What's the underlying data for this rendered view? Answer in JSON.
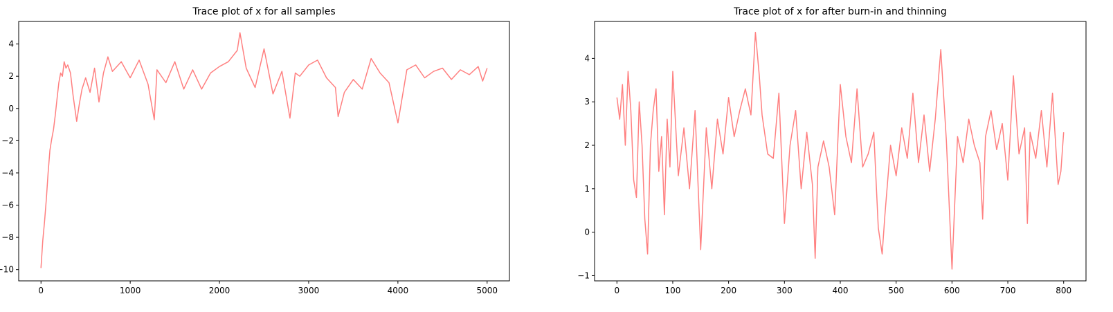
{
  "chart_data": [
    {
      "type": "line",
      "title": "Trace plot of x for all samples",
      "xlabel": "",
      "ylabel": "",
      "xlim": [
        -250,
        5250
      ],
      "ylim": [
        -10.7,
        5.4
      ],
      "xticks": [
        0,
        1000,
        2000,
        3000,
        4000,
        5000
      ],
      "xtick_labels": [
        "0",
        "1000",
        "2000",
        "3000",
        "4000",
        "5000"
      ],
      "yticks": [
        -10,
        -8,
        -6,
        -4,
        -2,
        0,
        2,
        4
      ],
      "ytick_labels": [
        "−10",
        "−8",
        "−6",
        "−4",
        "−2",
        "0",
        "2",
        "4"
      ],
      "grid": false,
      "series": [
        {
          "color": "#ff8080",
          "x": [
            0,
            20,
            40,
            60,
            80,
            100,
            120,
            140,
            160,
            180,
            200,
            220,
            240,
            260,
            280,
            300,
            330,
            360,
            400,
            430,
            460,
            500,
            550,
            600,
            650,
            700,
            750,
            800,
            900,
            1000,
            1100,
            1200,
            1270,
            1300,
            1400,
            1500,
            1600,
            1700,
            1800,
            1900,
            2000,
            2100,
            2200,
            2230,
            2300,
            2400,
            2500,
            2600,
            2700,
            2790,
            2850,
            2900,
            3000,
            3100,
            3200,
            3300,
            3330,
            3400,
            3500,
            3600,
            3700,
            3800,
            3900,
            4000,
            4100,
            4200,
            4300,
            4400,
            4500,
            4600,
            4700,
            4800,
            4900,
            4950,
            5000
          ],
          "y": [
            -9.9,
            -8.2,
            -7.0,
            -5.6,
            -4.0,
            -2.6,
            -1.9,
            -1.3,
            -0.4,
            0.6,
            1.6,
            2.2,
            2.0,
            2.9,
            2.5,
            2.7,
            2.2,
            0.8,
            -0.8,
            0.3,
            1.2,
            1.9,
            1.0,
            2.5,
            0.4,
            2.2,
            3.2,
            2.3,
            2.9,
            1.9,
            3.0,
            1.5,
            -0.7,
            2.4,
            1.6,
            2.9,
            1.2,
            2.4,
            1.2,
            2.2,
            2.6,
            2.9,
            3.6,
            4.7,
            2.5,
            1.3,
            3.7,
            0.9,
            2.3,
            -0.6,
            2.2,
            2.0,
            2.7,
            3.0,
            1.9,
            1.3,
            -0.5,
            1.0,
            1.8,
            1.2,
            3.1,
            2.2,
            1.6,
            -0.9,
            2.4,
            2.7,
            1.9,
            2.3,
            2.5,
            1.8,
            2.4,
            2.1,
            2.6,
            1.7,
            2.5
          ]
        }
      ]
    },
    {
      "type": "line",
      "title": "Trace plot of x for after burn-in and thinning",
      "xlabel": "",
      "ylabel": "",
      "xlim": [
        -40,
        840
      ],
      "ylim": [
        -1.12,
        4.85
      ],
      "xticks": [
        0,
        100,
        200,
        300,
        400,
        500,
        600,
        700,
        800
      ],
      "xtick_labels": [
        "0",
        "100",
        "200",
        "300",
        "400",
        "500",
        "600",
        "700",
        "800"
      ],
      "yticks": [
        -1,
        0,
        1,
        2,
        3,
        4
      ],
      "ytick_labels": [
        "−1",
        "0",
        "1",
        "2",
        "3",
        "4"
      ],
      "grid": false,
      "series": [
        {
          "color": "#ff8080",
          "x": [
            0,
            5,
            10,
            15,
            20,
            25,
            30,
            35,
            40,
            45,
            50,
            55,
            60,
            65,
            70,
            75,
            80,
            85,
            90,
            95,
            100,
            110,
            120,
            130,
            140,
            150,
            160,
            170,
            180,
            190,
            200,
            210,
            220,
            230,
            240,
            248,
            255,
            260,
            270,
            280,
            290,
            300,
            310,
            320,
            330,
            340,
            350,
            355,
            360,
            370,
            380,
            390,
            400,
            410,
            420,
            430,
            440,
            450,
            460,
            468,
            475,
            480,
            490,
            500,
            510,
            520,
            530,
            540,
            550,
            560,
            570,
            580,
            590,
            600,
            610,
            620,
            630,
            640,
            650,
            655,
            660,
            670,
            680,
            690,
            700,
            710,
            720,
            730,
            735,
            740,
            750,
            760,
            770,
            780,
            790,
            795,
            800
          ],
          "y": [
            3.1,
            2.6,
            3.4,
            2.0,
            3.7,
            2.8,
            1.2,
            0.8,
            3.0,
            2.0,
            0.3,
            -0.5,
            2.0,
            2.8,
            3.3,
            1.4,
            2.2,
            0.4,
            2.6,
            1.5,
            3.7,
            1.3,
            2.4,
            1.0,
            2.8,
            -0.4,
            2.4,
            1.0,
            2.6,
            1.8,
            3.1,
            2.2,
            2.8,
            3.3,
            2.7,
            4.6,
            3.6,
            2.7,
            1.8,
            1.7,
            3.2,
            0.2,
            2.0,
            2.8,
            1.0,
            2.3,
            1.1,
            -0.6,
            1.5,
            2.1,
            1.5,
            0.4,
            3.4,
            2.2,
            1.6,
            3.3,
            1.5,
            1.8,
            2.3,
            0.1,
            -0.5,
            0.4,
            2.0,
            1.3,
            2.4,
            1.7,
            3.2,
            1.6,
            2.7,
            1.4,
            2.6,
            4.2,
            2.1,
            -0.85,
            2.2,
            1.6,
            2.6,
            2.0,
            1.6,
            0.3,
            2.2,
            2.8,
            1.9,
            2.5,
            1.2,
            3.6,
            1.8,
            2.4,
            0.2,
            2.3,
            1.7,
            2.8,
            1.5,
            3.2,
            1.1,
            1.4,
            2.3
          ]
        }
      ]
    }
  ]
}
